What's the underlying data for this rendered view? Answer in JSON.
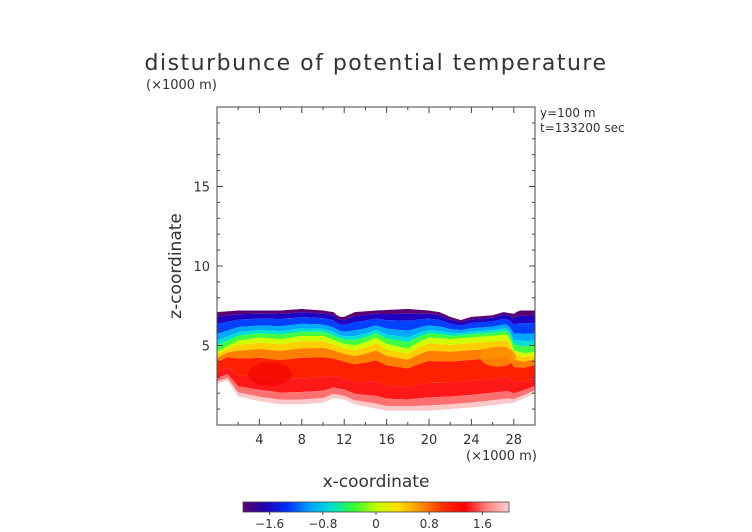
{
  "chart_data": {
    "type": "heatmap",
    "title": "disturbunce of potential temperature",
    "title_unit": "(×1000 m)",
    "annotation": [
      "y=100 m",
      "t=133200 sec"
    ],
    "xlabel": "x-coordinate",
    "xunit": "(×1000 m)",
    "ylabel": "z-coordinate",
    "xlim": [
      0,
      30
    ],
    "ylim": [
      0,
      20
    ],
    "xticks": [
      4,
      8,
      12,
      16,
      20,
      24,
      28
    ],
    "yticks": [
      5,
      10,
      15
    ],
    "colorbar": {
      "ticks": [
        "−1.6",
        "−0.8",
        "0",
        "0.8",
        "1.6"
      ],
      "range": [
        -2.0,
        2.0
      ],
      "colors": [
        "#5a0070",
        "#2000b0",
        "#0030ff",
        "#00a0ff",
        "#00e0d0",
        "#30ff30",
        "#c0ff00",
        "#ffe000",
        "#ff9000",
        "#ff3000",
        "#ff0000",
        "#ff8080",
        "#ffd0d0"
      ]
    },
    "field": {
      "top_boundary_z": [
        [
          0,
          7.1
        ],
        [
          2,
          7.2
        ],
        [
          4,
          7.2
        ],
        [
          6,
          7.2
        ],
        [
          8,
          7.3
        ],
        [
          10,
          7.2
        ],
        [
          11,
          7.1
        ],
        [
          11.5,
          6.8
        ],
        [
          12,
          6.8
        ],
        [
          13,
          7.1
        ],
        [
          15,
          7.2
        ],
        [
          18,
          7.3
        ],
        [
          20,
          7.2
        ],
        [
          21,
          7.1
        ],
        [
          22,
          6.8
        ],
        [
          23,
          6.6
        ],
        [
          24,
          6.8
        ],
        [
          26,
          6.9
        ],
        [
          27,
          7.1
        ],
        [
          28,
          7.0
        ],
        [
          28.5,
          7.2
        ],
        [
          30,
          7.2
        ]
      ],
      "zero_contour_z": [
        [
          0,
          4.6
        ],
        [
          2,
          5.3
        ],
        [
          4,
          5.5
        ],
        [
          6,
          5.4
        ],
        [
          8,
          5.6
        ],
        [
          10,
          5.6
        ],
        [
          12,
          5.1
        ],
        [
          13,
          5.0
        ],
        [
          14,
          5.2
        ],
        [
          15,
          5.5
        ],
        [
          16,
          5.1
        ],
        [
          18,
          4.8
        ],
        [
          19,
          5.2
        ],
        [
          20,
          5.5
        ],
        [
          22,
          5.4
        ],
        [
          24,
          5.5
        ],
        [
          26,
          5.6
        ],
        [
          27.5,
          5.7
        ],
        [
          28,
          4.7
        ],
        [
          29,
          4.5
        ],
        [
          30,
          4.6
        ]
      ],
      "bottom_boundary_z": [
        [
          0,
          2.6
        ],
        [
          1,
          2.8
        ],
        [
          2,
          1.8
        ],
        [
          4,
          1.5
        ],
        [
          6,
          1.3
        ],
        [
          8,
          1.3
        ],
        [
          10,
          1.4
        ],
        [
          11,
          1.7
        ],
        [
          12,
          1.6
        ],
        [
          13,
          1.3
        ],
        [
          16,
          0.9
        ],
        [
          20,
          0.9
        ],
        [
          24,
          1.1
        ],
        [
          28,
          1.4
        ],
        [
          30,
          2.0
        ]
      ]
    }
  }
}
